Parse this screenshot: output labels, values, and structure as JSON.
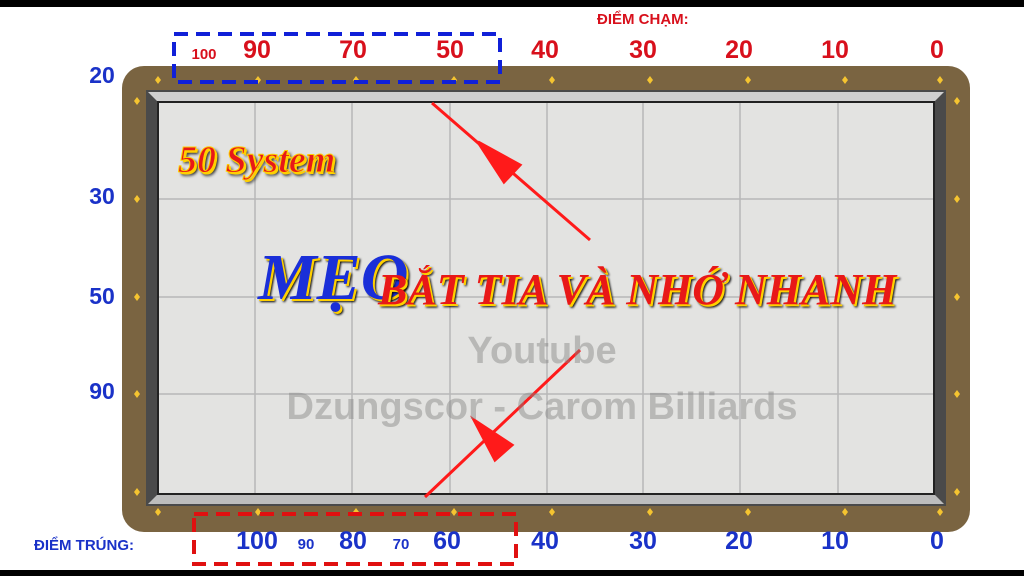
{
  "colors": {
    "rail": "#7a6441",
    "cloth": "#e3e3e1",
    "top_numbers": "#d8101c",
    "bottom_numbers": "#1a32c8",
    "arrow": "#ff1a1a"
  },
  "top": {
    "heading": "ĐIỂM CHẠM:",
    "numbers": [
      "100",
      "90",
      "70",
      "50",
      "40",
      "30",
      "20",
      "10",
      "0"
    ]
  },
  "bottom": {
    "heading": "ĐIỂM TRÚNG:",
    "numbers": [
      "100",
      "90",
      "80",
      "70",
      "60",
      "40",
      "30",
      "20",
      "10",
      "0"
    ]
  },
  "left": {
    "numbers": [
      "20",
      "30",
      "50",
      "90"
    ]
  },
  "title": {
    "system": "50 System",
    "meo": "MẸO",
    "rest": "BẮT TIA VÀ NHỚ NHANH"
  },
  "watermark": {
    "line1": "Youtube",
    "line2": "Dzungscor - Carom Billiards"
  }
}
